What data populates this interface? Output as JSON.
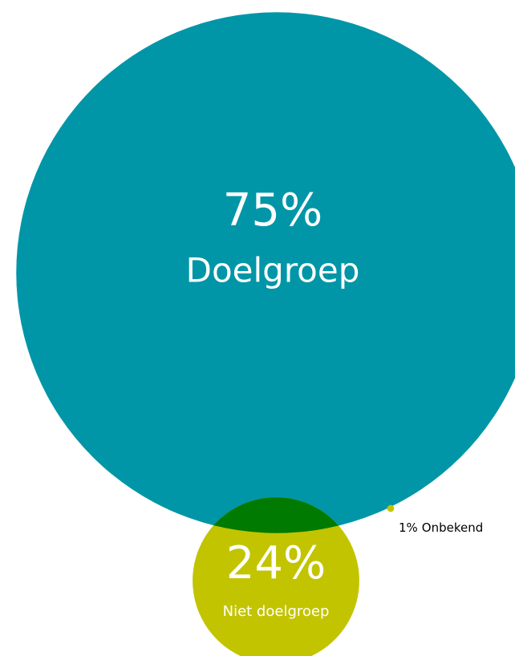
{
  "chart_data": {
    "type": "bubble",
    "categories": [
      "Doelgroep",
      "Niet doelgroep",
      "Onbekend"
    ],
    "values": [
      75,
      24,
      1
    ],
    "value_labels": [
      "75%",
      "24%",
      "1%"
    ],
    "colors": [
      "#0096a7",
      "#c3c400",
      "#c3c400"
    ]
  }
}
